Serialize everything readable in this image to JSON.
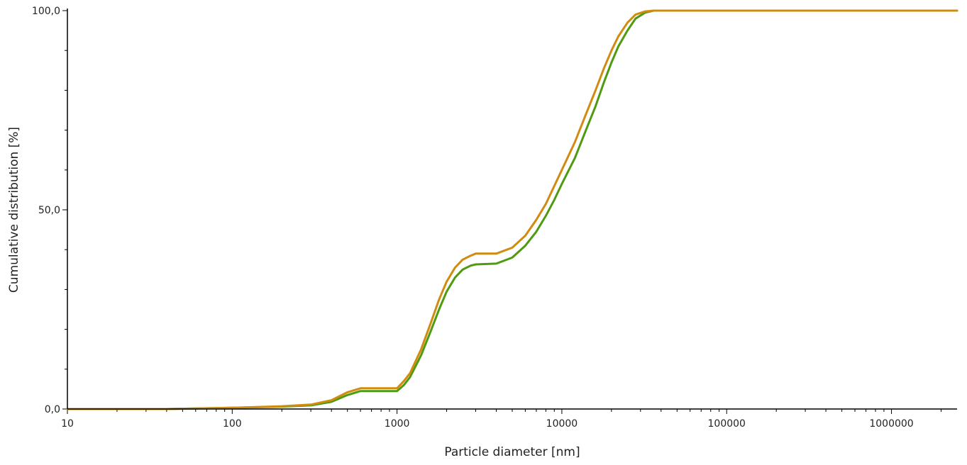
{
  "chart_data": {
    "type": "line",
    "title": "",
    "xlabel": "Particle diameter [nm]",
    "ylabel": "Cumulative distribution [%]",
    "x_scale": "log",
    "xlim": [
      10,
      2500000
    ],
    "ylim": [
      0,
      100
    ],
    "x_tick_labels": [
      "10",
      "100",
      "1000",
      "10000",
      "100000",
      "1000000"
    ],
    "y_tick_labels": [
      "0,0",
      "50,0",
      "100,0"
    ],
    "grid": false,
    "legend": "none",
    "series": [
      {
        "color": "#4e9a10",
        "points": [
          [
            10,
            0
          ],
          [
            40,
            0
          ],
          [
            100,
            0.3
          ],
          [
            200,
            0.6
          ],
          [
            300,
            0.9
          ],
          [
            400,
            1.8
          ],
          [
            500,
            3.5
          ],
          [
            600,
            4.5
          ],
          [
            700,
            4.5
          ],
          [
            800,
            4.5
          ],
          [
            900,
            4.5
          ],
          [
            1000,
            4.5
          ],
          [
            1100,
            6
          ],
          [
            1200,
            8
          ],
          [
            1400,
            13.5
          ],
          [
            1600,
            19.5
          ],
          [
            1800,
            25
          ],
          [
            2000,
            29.5
          ],
          [
            2250,
            33
          ],
          [
            2500,
            35
          ],
          [
            2800,
            36
          ],
          [
            3000,
            36.3
          ],
          [
            4000,
            36.5
          ],
          [
            5000,
            38
          ],
          [
            6000,
            41
          ],
          [
            7000,
            44.5
          ],
          [
            8000,
            48.5
          ],
          [
            9000,
            52.5
          ],
          [
            10000,
            56.5
          ],
          [
            12000,
            63
          ],
          [
            14000,
            70
          ],
          [
            16000,
            76
          ],
          [
            18000,
            82
          ],
          [
            20000,
            87
          ],
          [
            22000,
            91
          ],
          [
            25000,
            95
          ],
          [
            28000,
            98
          ],
          [
            32000,
            99.5
          ],
          [
            36000,
            100
          ],
          [
            2500000,
            100
          ]
        ]
      },
      {
        "color": "#d08c10",
        "points": [
          [
            10,
            0
          ],
          [
            40,
            0
          ],
          [
            100,
            0.3
          ],
          [
            200,
            0.7
          ],
          [
            300,
            1.1
          ],
          [
            400,
            2.2
          ],
          [
            500,
            4.2
          ],
          [
            600,
            5.2
          ],
          [
            700,
            5.2
          ],
          [
            800,
            5.2
          ],
          [
            900,
            5.2
          ],
          [
            1000,
            5.2
          ],
          [
            1100,
            7
          ],
          [
            1200,
            9
          ],
          [
            1400,
            15
          ],
          [
            1600,
            21.5
          ],
          [
            1800,
            27.5
          ],
          [
            2000,
            32
          ],
          [
            2250,
            35.5
          ],
          [
            2500,
            37.5
          ],
          [
            2800,
            38.5
          ],
          [
            3000,
            39
          ],
          [
            4000,
            39
          ],
          [
            5000,
            40.5
          ],
          [
            6000,
            43.5
          ],
          [
            7000,
            47.5
          ],
          [
            8000,
            51.5
          ],
          [
            9000,
            56
          ],
          [
            10000,
            60
          ],
          [
            12000,
            67
          ],
          [
            14000,
            74
          ],
          [
            16000,
            80
          ],
          [
            18000,
            85.5
          ],
          [
            20000,
            90
          ],
          [
            22000,
            93.5
          ],
          [
            25000,
            97
          ],
          [
            28000,
            99
          ],
          [
            32000,
            99.8
          ],
          [
            36000,
            100
          ],
          [
            2500000,
            100
          ]
        ]
      }
    ]
  }
}
